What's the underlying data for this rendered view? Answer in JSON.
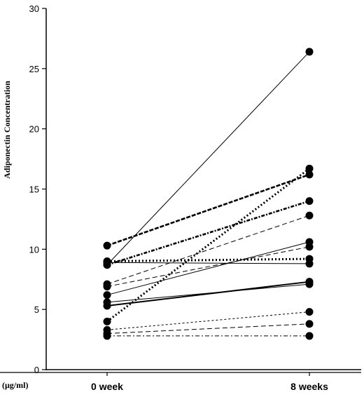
{
  "chart_data": {
    "type": "line",
    "title": "",
    "ylabel": "Adiponectin Concentration",
    "unit_label": "(μg/ml)",
    "ylim": [
      0,
      30
    ],
    "y_ticks": [
      "0",
      "5",
      "10",
      "15",
      "20",
      "25",
      "30"
    ],
    "categories": [
      "0 week",
      "8 weeks"
    ],
    "grid": false,
    "legend": "none",
    "series": [
      {
        "values": [
          8.7,
          26.4
        ],
        "style": "solid"
      },
      {
        "values": [
          10.3,
          16.2
        ],
        "style": "dashed-heavy"
      },
      {
        "values": [
          4.0,
          16.7
        ],
        "style": "dotted-heavy"
      },
      {
        "values": [
          8.7,
          14.0
        ],
        "style": "dash-dot-heavy"
      },
      {
        "values": [
          7.1,
          12.8
        ],
        "style": "dashed"
      },
      {
        "values": [
          6.2,
          10.6
        ],
        "style": "solid"
      },
      {
        "values": [
          6.9,
          10.2
        ],
        "style": "dashed"
      },
      {
        "values": [
          9.0,
          9.2
        ],
        "style": "dotted-heavy"
      },
      {
        "values": [
          8.9,
          8.8
        ],
        "style": "solid"
      },
      {
        "values": [
          5.3,
          7.3
        ],
        "style": "solid-heavy"
      },
      {
        "values": [
          5.6,
          7.1
        ],
        "style": "solid"
      },
      {
        "values": [
          3.3,
          4.8
        ],
        "style": "dashed-fine"
      },
      {
        "values": [
          3.0,
          3.8
        ],
        "style": "dashed"
      },
      {
        "values": [
          2.8,
          2.8
        ],
        "style": "dash-dot"
      }
    ]
  }
}
